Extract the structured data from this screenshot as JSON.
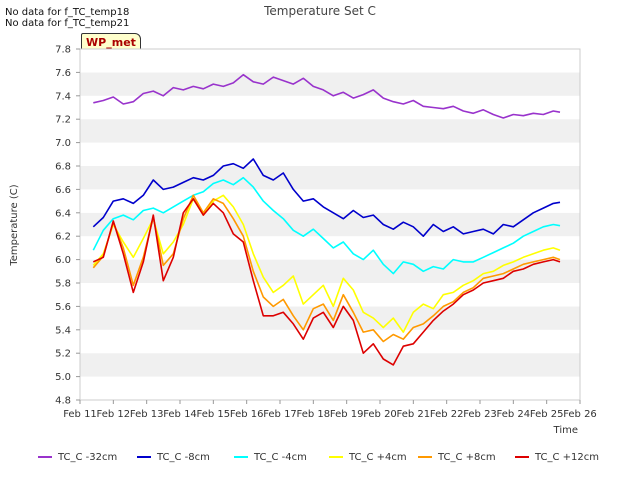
{
  "header": {
    "nodata_lines": [
      "No data for f_TC_temp18",
      "No data for f_TC_temp21"
    ],
    "badge": "WP_met"
  },
  "chart_data": {
    "type": "line",
    "title": "Temperature Set C",
    "xlabel": "Time",
    "ylabel": "Temperature (C)",
    "xlim": [
      11,
      26
    ],
    "ylim": [
      4.8,
      7.8
    ],
    "x_ticks": [
      "Feb 11",
      "Feb 12",
      "Feb 13",
      "Feb 14",
      "Feb 15",
      "Feb 16",
      "Feb 17",
      "Feb 18",
      "Feb 19",
      "Feb 20",
      "Feb 21",
      "Feb 22",
      "Feb 23",
      "Feb 24",
      "Feb 25",
      "Feb 26"
    ],
    "y_ticks": [
      "4.8",
      "5.0",
      "5.2",
      "5.4",
      "5.6",
      "5.8",
      "6.0",
      "6.2",
      "6.4",
      "6.6",
      "6.8",
      "7.0",
      "7.2",
      "7.4",
      "7.6",
      "7.8"
    ],
    "grid": "horizontal bands",
    "legend_position": "bottom",
    "x_unit": "day of February",
    "series": [
      {
        "name": "TC_C -32cm",
        "color": "#9933cc",
        "x": [
          11.4,
          11.7,
          12.0,
          12.3,
          12.6,
          12.9,
          13.2,
          13.5,
          13.8,
          14.1,
          14.4,
          14.7,
          15.0,
          15.3,
          15.6,
          15.9,
          16.2,
          16.5,
          16.8,
          17.1,
          17.4,
          17.7,
          18.0,
          18.3,
          18.6,
          18.9,
          19.2,
          19.5,
          19.8,
          20.1,
          20.4,
          20.7,
          21.0,
          21.3,
          21.6,
          21.9,
          22.2,
          22.5,
          22.8,
          23.1,
          23.4,
          23.7,
          24.0,
          24.3,
          24.6,
          24.9,
          25.2,
          25.4
        ],
        "y": [
          7.34,
          7.36,
          7.39,
          7.33,
          7.35,
          7.42,
          7.44,
          7.4,
          7.47,
          7.45,
          7.48,
          7.46,
          7.5,
          7.48,
          7.51,
          7.58,
          7.52,
          7.5,
          7.56,
          7.53,
          7.5,
          7.55,
          7.48,
          7.45,
          7.4,
          7.43,
          7.38,
          7.41,
          7.45,
          7.38,
          7.35,
          7.33,
          7.36,
          7.31,
          7.3,
          7.29,
          7.31,
          7.27,
          7.25,
          7.28,
          7.24,
          7.21,
          7.24,
          7.23,
          7.25,
          7.24,
          7.27,
          7.26
        ]
      },
      {
        "name": "TC_C -8cm",
        "color": "#0000cc",
        "x": [
          11.4,
          11.7,
          12.0,
          12.3,
          12.6,
          12.9,
          13.2,
          13.5,
          13.8,
          14.1,
          14.4,
          14.7,
          15.0,
          15.3,
          15.6,
          15.9,
          16.2,
          16.5,
          16.8,
          17.1,
          17.4,
          17.7,
          18.0,
          18.3,
          18.6,
          18.9,
          19.2,
          19.5,
          19.8,
          20.1,
          20.4,
          20.7,
          21.0,
          21.3,
          21.6,
          21.9,
          22.2,
          22.5,
          22.8,
          23.1,
          23.4,
          23.7,
          24.0,
          24.3,
          24.6,
          24.9,
          25.2,
          25.4
        ],
        "y": [
          6.28,
          6.36,
          6.5,
          6.52,
          6.48,
          6.55,
          6.68,
          6.6,
          6.62,
          6.66,
          6.7,
          6.68,
          6.72,
          6.8,
          6.82,
          6.78,
          6.86,
          6.72,
          6.68,
          6.74,
          6.6,
          6.5,
          6.52,
          6.45,
          6.4,
          6.35,
          6.42,
          6.36,
          6.38,
          6.3,
          6.26,
          6.32,
          6.28,
          6.2,
          6.3,
          6.24,
          6.28,
          6.22,
          6.24,
          6.26,
          6.22,
          6.3,
          6.28,
          6.34,
          6.4,
          6.44,
          6.48,
          6.49
        ]
      },
      {
        "name": "TC_C -4cm",
        "color": "#00ffff",
        "x": [
          11.4,
          11.7,
          12.0,
          12.3,
          12.6,
          12.9,
          13.2,
          13.5,
          13.8,
          14.1,
          14.4,
          14.7,
          15.0,
          15.3,
          15.6,
          15.9,
          16.2,
          16.5,
          16.8,
          17.1,
          17.4,
          17.7,
          18.0,
          18.3,
          18.6,
          18.9,
          19.2,
          19.5,
          19.8,
          20.1,
          20.4,
          20.7,
          21.0,
          21.3,
          21.6,
          21.9,
          22.2,
          22.5,
          22.8,
          23.1,
          23.4,
          23.7,
          24.0,
          24.3,
          24.6,
          24.9,
          25.2,
          25.4
        ],
        "y": [
          6.08,
          6.25,
          6.35,
          6.38,
          6.34,
          6.42,
          6.44,
          6.4,
          6.45,
          6.5,
          6.55,
          6.58,
          6.65,
          6.68,
          6.64,
          6.7,
          6.62,
          6.5,
          6.42,
          6.35,
          6.25,
          6.2,
          6.26,
          6.18,
          6.1,
          6.15,
          6.05,
          6.0,
          6.08,
          5.96,
          5.88,
          5.98,
          5.96,
          5.9,
          5.94,
          5.92,
          6.0,
          5.98,
          5.98,
          6.02,
          6.06,
          6.1,
          6.14,
          6.2,
          6.24,
          6.28,
          6.3,
          6.29
        ]
      },
      {
        "name": "TC_C +4cm",
        "color": "#ffff00",
        "x": [
          11.4,
          11.7,
          12.0,
          12.3,
          12.6,
          12.9,
          13.2,
          13.5,
          13.8,
          14.1,
          14.4,
          14.7,
          15.0,
          15.3,
          15.6,
          15.9,
          16.2,
          16.5,
          16.8,
          17.1,
          17.4,
          17.7,
          18.0,
          18.3,
          18.6,
          18.9,
          19.2,
          19.5,
          19.8,
          20.1,
          20.4,
          20.7,
          21.0,
          21.3,
          21.6,
          21.9,
          22.2,
          22.5,
          22.8,
          23.1,
          23.4,
          23.7,
          24.0,
          24.3,
          24.6,
          24.9,
          25.2,
          25.4
        ],
        "y": [
          5.95,
          6.05,
          6.3,
          6.15,
          6.02,
          6.18,
          6.35,
          6.05,
          6.15,
          6.3,
          6.52,
          6.38,
          6.5,
          6.55,
          6.45,
          6.3,
          6.05,
          5.85,
          5.72,
          5.78,
          5.86,
          5.62,
          5.7,
          5.78,
          5.6,
          5.84,
          5.74,
          5.55,
          5.5,
          5.42,
          5.5,
          5.38,
          5.55,
          5.62,
          5.58,
          5.7,
          5.72,
          5.78,
          5.82,
          5.88,
          5.9,
          5.95,
          5.98,
          6.02,
          6.05,
          6.08,
          6.1,
          6.08
        ]
      },
      {
        "name": "TC_C +8cm",
        "color": "#ff9900",
        "x": [
          11.4,
          11.7,
          12.0,
          12.3,
          12.6,
          12.9,
          13.2,
          13.5,
          13.8,
          14.1,
          14.4,
          14.7,
          15.0,
          15.3,
          15.6,
          15.9,
          16.2,
          16.5,
          16.8,
          17.1,
          17.4,
          17.7,
          18.0,
          18.3,
          18.6,
          18.9,
          19.2,
          19.5,
          19.8,
          20.1,
          20.4,
          20.7,
          21.0,
          21.3,
          21.6,
          21.9,
          22.2,
          22.5,
          22.8,
          23.1,
          23.4,
          23.7,
          24.0,
          24.3,
          24.6,
          24.9,
          25.2,
          25.4
        ],
        "y": [
          5.93,
          6.03,
          6.32,
          6.1,
          5.78,
          6.02,
          6.36,
          5.95,
          6.05,
          6.35,
          6.55,
          6.4,
          6.52,
          6.48,
          6.35,
          6.2,
          5.9,
          5.68,
          5.6,
          5.66,
          5.52,
          5.4,
          5.58,
          5.62,
          5.48,
          5.7,
          5.55,
          5.38,
          5.4,
          5.3,
          5.36,
          5.32,
          5.42,
          5.45,
          5.52,
          5.6,
          5.64,
          5.72,
          5.76,
          5.84,
          5.86,
          5.88,
          5.92,
          5.96,
          5.98,
          6.0,
          6.02,
          6.0
        ]
      },
      {
        "name": "TC_C +12cm",
        "color": "#dd0000",
        "x": [
          11.4,
          11.7,
          12.0,
          12.3,
          12.6,
          12.9,
          13.2,
          13.5,
          13.8,
          14.1,
          14.4,
          14.7,
          15.0,
          15.3,
          15.6,
          15.9,
          16.2,
          16.5,
          16.8,
          17.1,
          17.4,
          17.7,
          18.0,
          18.3,
          18.6,
          18.9,
          19.2,
          19.5,
          19.8,
          20.1,
          20.4,
          20.7,
          21.0,
          21.3,
          21.6,
          21.9,
          22.2,
          22.5,
          22.8,
          23.1,
          23.4,
          23.7,
          24.0,
          24.3,
          24.6,
          24.9,
          25.2,
          25.4
        ],
        "y": [
          5.98,
          6.02,
          6.33,
          6.05,
          5.72,
          5.98,
          6.38,
          5.82,
          6.02,
          6.4,
          6.52,
          6.38,
          6.48,
          6.4,
          6.22,
          6.15,
          5.82,
          5.52,
          5.52,
          5.55,
          5.45,
          5.32,
          5.5,
          5.55,
          5.42,
          5.6,
          5.48,
          5.2,
          5.28,
          5.15,
          5.1,
          5.26,
          5.28,
          5.38,
          5.48,
          5.56,
          5.62,
          5.7,
          5.74,
          5.8,
          5.82,
          5.84,
          5.9,
          5.92,
          5.96,
          5.98,
          6.0,
          5.98
        ]
      }
    ]
  }
}
